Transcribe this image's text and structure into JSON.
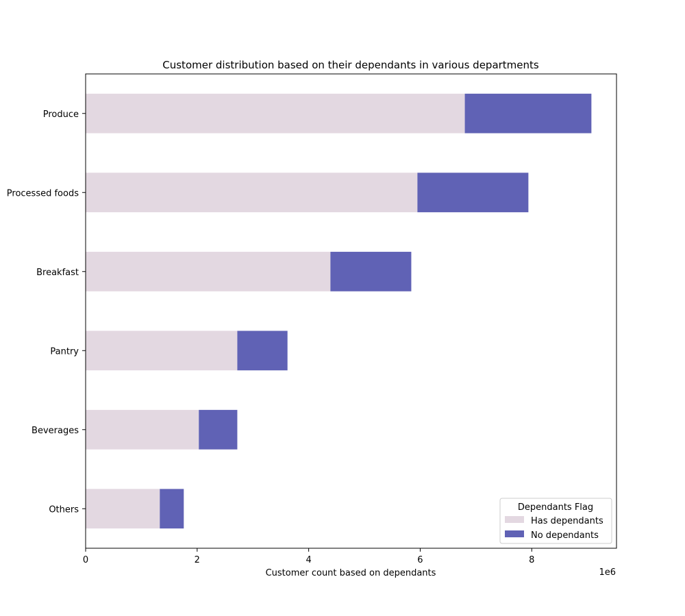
{
  "chart_data": {
    "type": "bar",
    "orientation": "horizontal",
    "stacked": true,
    "title": "Customer distribution based on their dependants in various departments",
    "xlabel": "Customer count based on dependants",
    "ylabel": "",
    "x_scale_label": "1e6",
    "xlim": [
      0,
      9520000
    ],
    "xticks": [
      0,
      2000000,
      4000000,
      6000000,
      8000000
    ],
    "xtick_labels": [
      "0",
      "2",
      "4",
      "6",
      "8"
    ],
    "categories": [
      "Produce",
      "Processed foods",
      "Breakfast",
      "Pantry",
      "Beverages",
      "Others"
    ],
    "series": [
      {
        "name": "Has dependants",
        "color": "#e3d8e1",
        "values": [
          6800000,
          5950000,
          4390000,
          2720000,
          2030000,
          1330000
        ]
      },
      {
        "name": "No dependants",
        "color": "#6062b5",
        "values": [
          2270000,
          1990000,
          1450000,
          900000,
          690000,
          430000
        ]
      }
    ],
    "legend": {
      "title": "Dependants Flag",
      "position": "lower-right"
    },
    "grid": false
  }
}
